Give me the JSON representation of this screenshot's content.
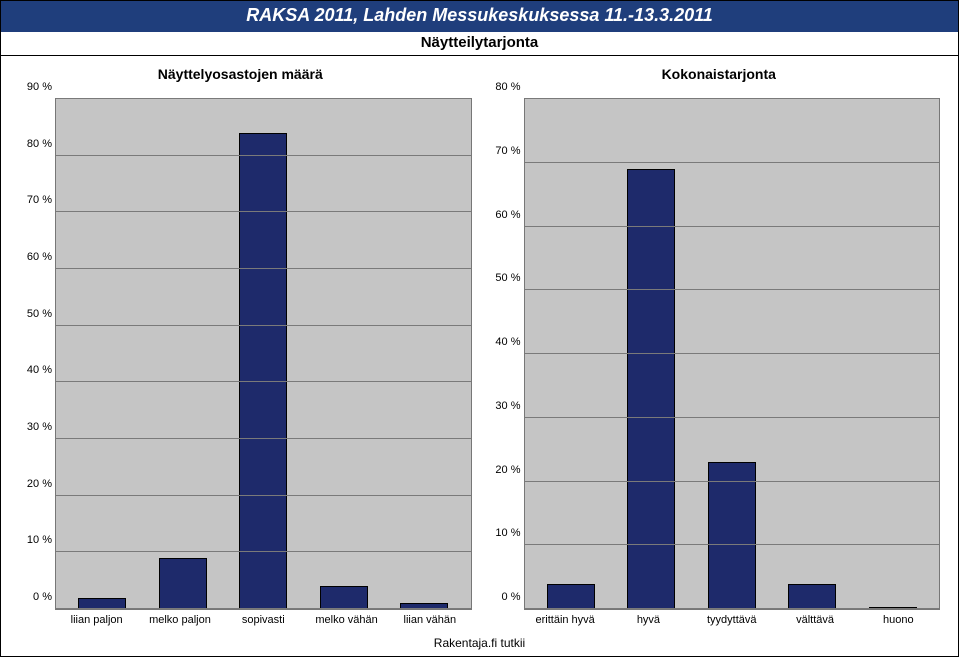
{
  "header": {
    "title": "RAKSA 2011, Lahden Messukeskuksessa 11.-13.3.2011",
    "subtitle": "Näytteilytarjonta",
    "title_bg": "#1f3e7c",
    "title_fg": "#ffffff"
  },
  "footer": "Rakentaja.fi tutkii",
  "style": {
    "plot_bg": "#c5c5c5",
    "grid_color": "#7a7a7a",
    "bar_color": "#1e2a6b",
    "bar_width_pct": 60
  },
  "chart_left": {
    "title": "Näyttelyosastojen määrä",
    "type": "bar",
    "ymin": 0,
    "ymax": 90,
    "ystep": 10,
    "categories": [
      "liian paljon",
      "melko paljon",
      "sopivasti",
      "melko vähän",
      "liian vähän"
    ],
    "values": [
      2,
      9,
      84,
      4,
      1
    ]
  },
  "chart_right": {
    "title": "Kokonaistarjonta",
    "type": "bar",
    "ymin": 0,
    "ymax": 80,
    "ystep": 10,
    "categories": [
      "erittäin hyvä",
      "hyvä",
      "tyydyttävä",
      "välttävä",
      "huono"
    ],
    "values": [
      4,
      69,
      23,
      4,
      0
    ]
  }
}
